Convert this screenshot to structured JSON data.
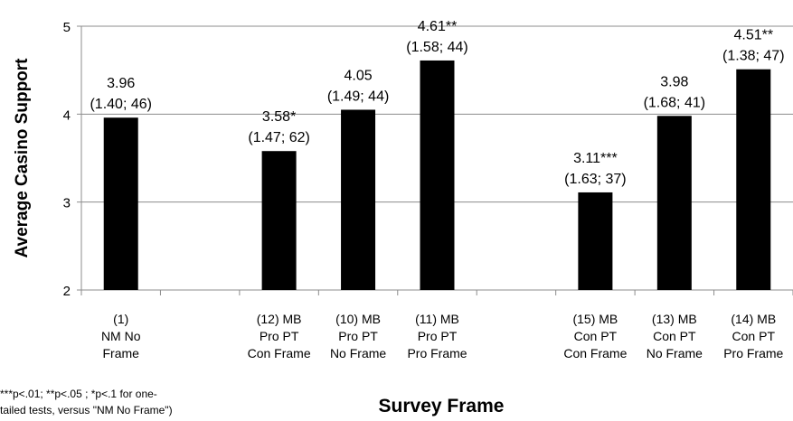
{
  "chart_data": {
    "type": "bar",
    "ylabel": "Average Casino Support",
    "xlabel": "Survey Frame",
    "ylim": [
      2,
      5
    ],
    "yticks": [
      2,
      3,
      4,
      5
    ],
    "grid": true,
    "slots": [
      {
        "category": [
          "(1)",
          "NM No",
          "Frame"
        ],
        "value": 3.96,
        "label": [
          "3.96",
          "(1.40; 46)"
        ]
      },
      {
        "category": [],
        "value": null,
        "label": []
      },
      {
        "category": [
          "(12) MB",
          "Pro PT",
          "Con Frame"
        ],
        "value": 3.58,
        "label": [
          "3.58*",
          "(1.47; 62)"
        ]
      },
      {
        "category": [
          "(10) MB",
          "Pro PT",
          "No Frame"
        ],
        "value": 4.05,
        "label": [
          "4.05",
          "(1.49; 44)"
        ]
      },
      {
        "category": [
          "(11) MB",
          "Pro PT",
          "Pro Frame"
        ],
        "value": 4.61,
        "label": [
          "4.61**",
          "(1.58; 44)"
        ]
      },
      {
        "category": [],
        "value": null,
        "label": []
      },
      {
        "category": [
          "(15) MB",
          "Con PT",
          "Con Frame"
        ],
        "value": 3.11,
        "label": [
          "3.11***",
          "(1.63; 37)"
        ]
      },
      {
        "category": [
          "(13) MB",
          "Con PT",
          "No Frame"
        ],
        "value": 3.98,
        "label": [
          "3.98",
          "(1.68; 41)"
        ]
      },
      {
        "category": [
          "(14) MB",
          "Con PT",
          "Pro Frame"
        ],
        "value": 4.51,
        "label": [
          "4.51**",
          "(1.38; 47)"
        ]
      }
    ],
    "bar_color": "#000000",
    "footnote": "***p<.01; **p<.05 ; *p<.1 for one-\ntailed tests, versus \"NM No Frame\")"
  }
}
